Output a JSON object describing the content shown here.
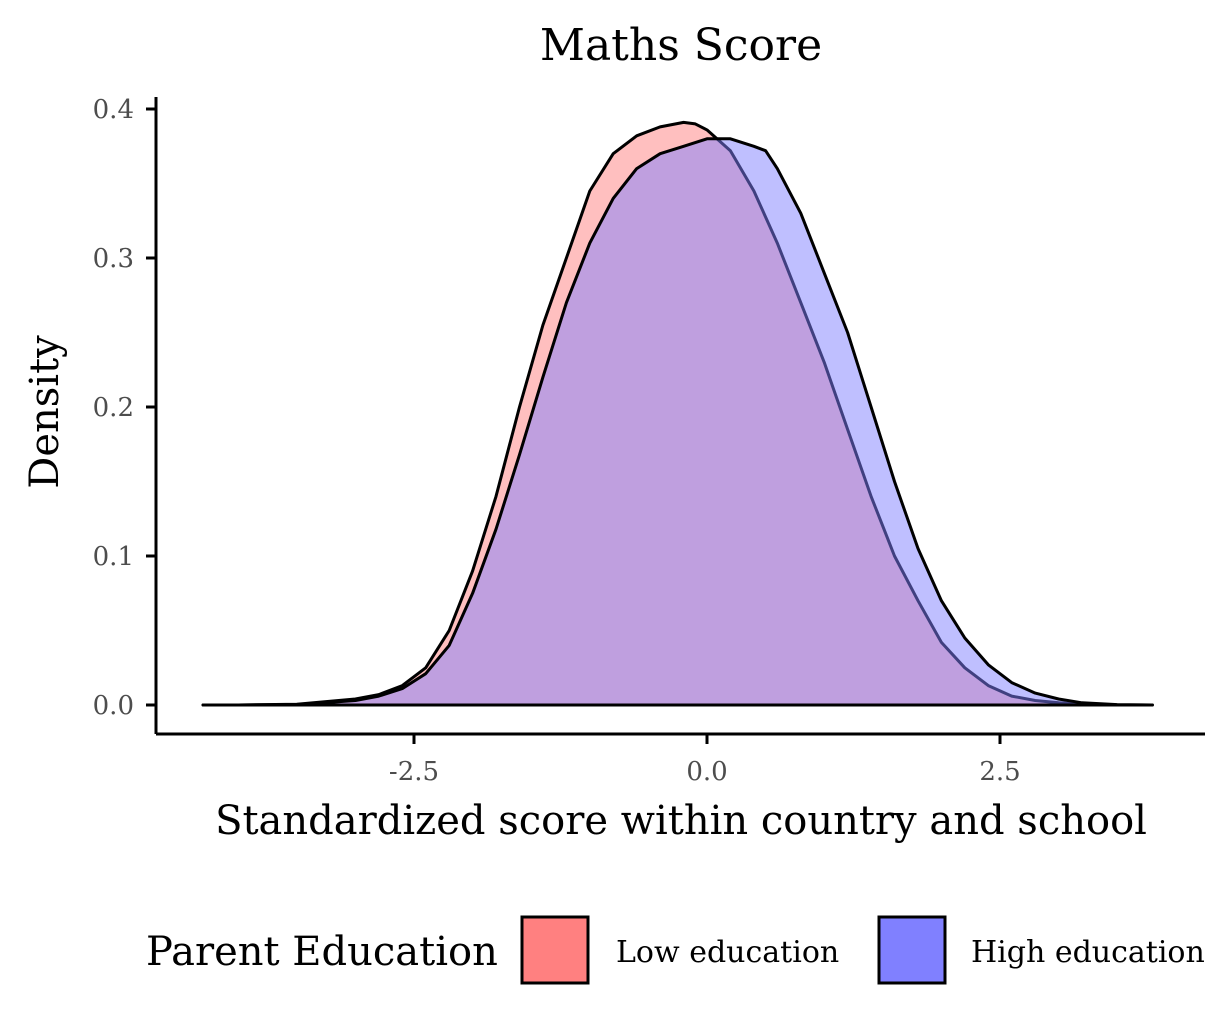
{
  "chart_data": {
    "type": "area",
    "title": "Maths Score",
    "xlabel": "Standardized score within country and school",
    "ylabel": "Density",
    "xlim": [
      -4.5,
      5.0
    ],
    "ylim": [
      -0.018,
      0.41
    ],
    "x_ticks": [
      -2.5,
      0.0,
      2.5
    ],
    "x_tick_labels": [
      "-2.5",
      "0.0",
      "2.5"
    ],
    "y_ticks": [
      0.0,
      0.1,
      0.2,
      0.3,
      0.4
    ],
    "y_tick_labels": [
      "0.0",
      "0.1",
      "0.2",
      "0.3",
      "0.4"
    ],
    "grid": false,
    "legend": {
      "title": "Parent Education",
      "position": "bottom"
    },
    "series": [
      {
        "name": "Low education",
        "color": "#FF8080",
        "x": [
          -4.3,
          -4.0,
          -3.5,
          -3.0,
          -2.8,
          -2.6,
          -2.4,
          -2.2,
          -2.0,
          -1.8,
          -1.6,
          -1.4,
          -1.2,
          -1.0,
          -0.8,
          -0.6,
          -0.4,
          -0.2,
          -0.1,
          0.0,
          0.2,
          0.4,
          0.6,
          0.8,
          1.0,
          1.2,
          1.4,
          1.6,
          1.8,
          2.0,
          2.2,
          2.4,
          2.6,
          2.8,
          3.0,
          3.2,
          3.5,
          3.8
        ],
        "y": [
          0.0,
          0.0,
          0.0005,
          0.004,
          0.007,
          0.013,
          0.025,
          0.05,
          0.09,
          0.14,
          0.2,
          0.255,
          0.3,
          0.345,
          0.37,
          0.382,
          0.388,
          0.391,
          0.39,
          0.386,
          0.372,
          0.345,
          0.31,
          0.27,
          0.23,
          0.185,
          0.14,
          0.1,
          0.07,
          0.042,
          0.025,
          0.013,
          0.006,
          0.003,
          0.0015,
          0.0005,
          0.0,
          0.0
        ]
      },
      {
        "name": "High education",
        "color": "#8080FF",
        "x": [
          -4.3,
          -4.0,
          -3.5,
          -3.0,
          -2.8,
          -2.6,
          -2.4,
          -2.2,
          -2.0,
          -1.8,
          -1.6,
          -1.4,
          -1.2,
          -1.0,
          -0.8,
          -0.6,
          -0.4,
          -0.2,
          0.0,
          0.2,
          0.4,
          0.5,
          0.6,
          0.8,
          1.0,
          1.2,
          1.4,
          1.6,
          1.8,
          2.0,
          2.2,
          2.4,
          2.6,
          2.8,
          3.0,
          3.2,
          3.5,
          3.8
        ],
        "y": [
          0.0,
          0.0,
          0.0003,
          0.003,
          0.006,
          0.011,
          0.021,
          0.04,
          0.075,
          0.118,
          0.168,
          0.22,
          0.27,
          0.31,
          0.34,
          0.36,
          0.37,
          0.375,
          0.38,
          0.38,
          0.375,
          0.372,
          0.36,
          0.33,
          0.29,
          0.25,
          0.2,
          0.15,
          0.105,
          0.07,
          0.045,
          0.027,
          0.015,
          0.008,
          0.004,
          0.0015,
          0.0003,
          0.0
        ]
      }
    ]
  }
}
